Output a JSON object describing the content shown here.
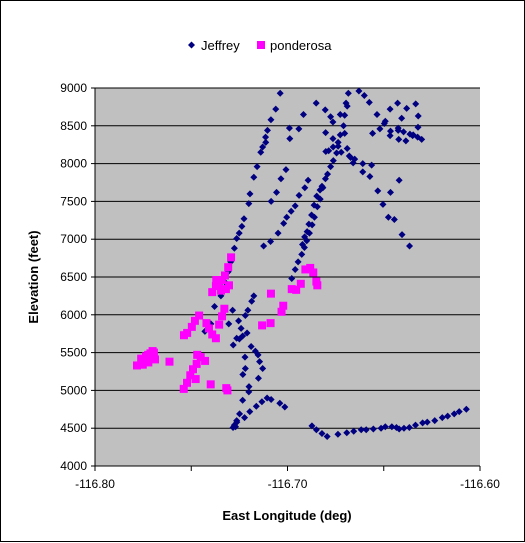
{
  "chart_data": {
    "type": "scatter",
    "title": "",
    "xlabel": "East Longitude (deg)",
    "ylabel": "Elevation (feet)",
    "xlim": [
      -116.8,
      -116.6
    ],
    "ylim": [
      4000,
      9000
    ],
    "x_ticks": [
      -116.8,
      -116.7,
      -116.6
    ],
    "x_tick_labels": [
      "-116.80",
      "-116.70",
      "-116.60"
    ],
    "y_ticks": [
      4000,
      4500,
      5000,
      5500,
      6000,
      6500,
      7000,
      7500,
      8000,
      8500,
      9000
    ],
    "y_tick_labels": [
      "4000",
      "4500",
      "5000",
      "5500",
      "6000",
      "6500",
      "7000",
      "7500",
      "8000",
      "8500",
      "9000"
    ],
    "grid": "horizontal",
    "legend_position": "top",
    "plot_background": "#c0c0c0",
    "series": [
      {
        "name": "Jeffrey",
        "marker": "diamond",
        "color": "#000080",
        "points": [
          [
            -116.7429,
            5780
          ],
          [
            -116.7398,
            5880
          ],
          [
            -116.7379,
            6110
          ],
          [
            -116.7346,
            6250
          ],
          [
            -116.7321,
            6420
          ],
          [
            -116.7308,
            6570
          ],
          [
            -116.7295,
            6700
          ],
          [
            -116.7276,
            6880
          ],
          [
            -116.7264,
            7010
          ],
          [
            -116.7251,
            7080
          ],
          [
            -116.7237,
            7170
          ],
          [
            -116.7226,
            7270
          ],
          [
            -116.7201,
            7470
          ],
          [
            -116.7195,
            7600
          ],
          [
            -116.7175,
            7820
          ],
          [
            -116.7158,
            7960
          ],
          [
            -116.7139,
            8150
          ],
          [
            -116.7129,
            8220
          ],
          [
            -116.7113,
            8280
          ],
          [
            -116.7114,
            8350
          ],
          [
            -116.7104,
            8440
          ],
          [
            -116.7086,
            8580
          ],
          [
            -116.7061,
            8720
          ],
          [
            -116.7038,
            8930
          ],
          [
            -116.7175,
            6250
          ],
          [
            -116.7186,
            6180
          ],
          [
            -116.7206,
            6060
          ],
          [
            -116.7219,
            5990
          ],
          [
            -116.7241,
            5820
          ],
          [
            -116.7264,
            5690
          ],
          [
            -116.7282,
            5600
          ],
          [
            -116.725,
            5680
          ],
          [
            -116.7221,
            5440
          ],
          [
            -116.7219,
            5290
          ],
          [
            -116.7232,
            5210
          ],
          [
            -116.72,
            5050
          ],
          [
            -116.7201,
            4980
          ],
          [
            -116.7233,
            4870
          ],
          [
            -116.7249,
            4690
          ],
          [
            -116.7264,
            4600
          ],
          [
            -116.7263,
            4580
          ],
          [
            -116.7276,
            4540
          ],
          [
            -116.7283,
            4510
          ],
          [
            -116.727,
            4520
          ],
          [
            -116.7223,
            4640
          ],
          [
            -116.7196,
            4720
          ],
          [
            -116.7162,
            4790
          ],
          [
            -116.7133,
            4850
          ],
          [
            -116.7106,
            4900
          ],
          [
            -116.7085,
            4880
          ],
          [
            -116.704,
            4830
          ],
          [
            -116.7014,
            4780
          ],
          [
            -116.6873,
            4530
          ],
          [
            -116.685,
            4480
          ],
          [
            -116.6821,
            4430
          ],
          [
            -116.6794,
            4390
          ],
          [
            -116.6738,
            4420
          ],
          [
            -116.6692,
            4440
          ],
          [
            -116.6656,
            4460
          ],
          [
            -116.6617,
            4480
          ],
          [
            -116.6591,
            4480
          ],
          [
            -116.6554,
            4490
          ],
          [
            -116.6514,
            4500
          ],
          [
            -116.6492,
            4520
          ],
          [
            -116.6458,
            4520
          ],
          [
            -116.6434,
            4510
          ],
          [
            -116.642,
            4490
          ],
          [
            -116.6395,
            4500
          ],
          [
            -116.6367,
            4510
          ],
          [
            -116.6335,
            4540
          ],
          [
            -116.6298,
            4570
          ],
          [
            -116.6274,
            4580
          ],
          [
            -116.6235,
            4600
          ],
          [
            -116.6196,
            4640
          ],
          [
            -116.6168,
            4660
          ],
          [
            -116.6134,
            4690
          ],
          [
            -116.6108,
            4720
          ],
          [
            -116.6071,
            4750
          ],
          [
            -116.6978,
            6480
          ],
          [
            -116.696,
            6600
          ],
          [
            -116.6945,
            6700
          ],
          [
            -116.6926,
            6800
          ],
          [
            -116.6912,
            6890
          ],
          [
            -116.69,
            6980
          ],
          [
            -116.6886,
            7080
          ],
          [
            -116.6872,
            7190
          ],
          [
            -116.686,
            7290
          ],
          [
            -116.6845,
            7430
          ],
          [
            -116.683,
            7530
          ],
          [
            -116.6816,
            7680
          ],
          [
            -116.6803,
            7800
          ],
          [
            -116.6792,
            7860
          ],
          [
            -116.6776,
            7960
          ],
          [
            -116.6762,
            8040
          ],
          [
            -116.6745,
            8140
          ],
          [
            -116.6737,
            8280
          ],
          [
            -116.6726,
            8380
          ],
          [
            -116.6709,
            8500
          ],
          [
            -116.6703,
            8640
          ],
          [
            -116.6696,
            8800
          ],
          [
            -116.6684,
            8930
          ],
          [
            -116.6922,
            6930
          ],
          [
            -116.6911,
            7030
          ],
          [
            -116.6898,
            7100
          ],
          [
            -116.6889,
            7200
          ],
          [
            -116.6875,
            7320
          ],
          [
            -116.6862,
            7450
          ],
          [
            -116.6848,
            7570
          ],
          [
            -116.6831,
            7650
          ],
          [
            -116.6821,
            7700
          ],
          [
            -116.6801,
            8160
          ],
          [
            -116.6786,
            8170
          ],
          [
            -116.6763,
            8220
          ],
          [
            -116.6737,
            8230
          ],
          [
            -116.6721,
            8150
          ],
          [
            -116.6679,
            8100
          ],
          [
            -116.6651,
            8060
          ],
          [
            -116.6609,
            7890
          ],
          [
            -116.6572,
            7830
          ],
          [
            -116.6531,
            7640
          ],
          [
            -116.6504,
            7460
          ],
          [
            -116.6476,
            7290
          ],
          [
            -116.6445,
            7260
          ],
          [
            -116.6405,
            7060
          ],
          [
            -116.6366,
            6910
          ],
          [
            -116.6558,
            8400
          ],
          [
            -116.652,
            8460
          ],
          [
            -116.6492,
            8560
          ],
          [
            -116.6467,
            8720
          ],
          [
            -116.6428,
            8800
          ],
          [
            -116.6467,
            8370
          ],
          [
            -116.6422,
            8320
          ],
          [
            -116.6385,
            8300
          ],
          [
            -116.635,
            8370
          ],
          [
            -116.6629,
            8960
          ],
          [
            -116.6601,
            8900
          ],
          [
            -116.6575,
            8810
          ],
          [
            -116.6535,
            8650
          ],
          [
            -116.6497,
            8530
          ],
          [
            -116.6465,
            8430
          ],
          [
            -116.6425,
            8440
          ],
          [
            -116.6397,
            8420
          ],
          [
            -116.6364,
            8390
          ],
          [
            -116.6347,
            8380
          ],
          [
            -116.6324,
            8350
          ],
          [
            -116.6303,
            8320
          ],
          [
            -116.6322,
            8480
          ],
          [
            -116.6321,
            8630
          ],
          [
            -116.6334,
            8790
          ],
          [
            -116.6381,
            8730
          ],
          [
            -116.6407,
            8600
          ],
          [
            -116.6425,
            8470
          ],
          [
            -116.642,
            7780
          ],
          [
            -116.6465,
            7620
          ],
          [
            -116.6563,
            7980
          ],
          [
            -116.6609,
            8000
          ],
          [
            -116.6659,
            8010
          ],
          [
            -116.6764,
            8330
          ],
          [
            -116.6776,
            8620
          ],
          [
            -116.6804,
            8710
          ],
          [
            -116.6851,
            8800
          ],
          [
            -116.6917,
            8650
          ],
          [
            -116.6941,
            8460
          ],
          [
            -116.6988,
            8330
          ],
          [
            -116.699,
            8470
          ],
          [
            -116.6802,
            8410
          ],
          [
            -116.6764,
            8550
          ],
          [
            -116.6726,
            8650
          ],
          [
            -116.6703,
            8400
          ],
          [
            -116.669,
            8200
          ],
          [
            -116.6672,
            8080
          ],
          [
            -116.669,
            8760
          ],
          [
            -116.7124,
            6910
          ],
          [
            -116.7088,
            6970
          ],
          [
            -116.7049,
            7080
          ],
          [
            -116.702,
            7210
          ],
          [
            -116.7004,
            7290
          ],
          [
            -116.6981,
            7370
          ],
          [
            -116.696,
            7440
          ],
          [
            -116.694,
            7580
          ],
          [
            -116.691,
            7680
          ],
          [
            -116.6893,
            7780
          ],
          [
            -116.7085,
            7500
          ],
          [
            -116.7057,
            7620
          ],
          [
            -116.7034,
            7800
          ],
          [
            -116.7008,
            7920
          ],
          [
            -116.7305,
            5880
          ],
          [
            -116.7285,
            6060
          ],
          [
            -116.7254,
            5920
          ],
          [
            -116.7233,
            5720
          ],
          [
            -116.721,
            5760
          ],
          [
            -116.7189,
            5580
          ],
          [
            -116.7167,
            5520
          ],
          [
            -116.7153,
            5470
          ],
          [
            -116.7145,
            5380
          ],
          [
            -116.7129,
            5290
          ],
          [
            -116.7151,
            5160
          ]
        ]
      },
      {
        "name": "ponderosa",
        "marker": "square",
        "color": "#ff00ff",
        "points": [
          [
            -116.7782,
            5330
          ],
          [
            -116.776,
            5420
          ],
          [
            -116.7748,
            5380
          ],
          [
            -116.7735,
            5450
          ],
          [
            -116.7723,
            5370
          ],
          [
            -116.7712,
            5490
          ],
          [
            -116.7701,
            5520
          ],
          [
            -116.7688,
            5410
          ],
          [
            -116.7752,
            5340
          ],
          [
            -116.7737,
            5410
          ],
          [
            -116.7724,
            5470
          ],
          [
            -116.7694,
            5500
          ],
          [
            -116.7613,
            5380
          ],
          [
            -116.7538,
            5730
          ],
          [
            -116.7521,
            5760
          ],
          [
            -116.7497,
            5840
          ],
          [
            -116.7481,
            5920
          ],
          [
            -116.7459,
            5990
          ],
          [
            -116.7421,
            5890
          ],
          [
            -116.7408,
            5820
          ],
          [
            -116.7391,
            5740
          ],
          [
            -116.7372,
            5690
          ],
          [
            -116.7355,
            5870
          ],
          [
            -116.734,
            5980
          ],
          [
            -116.7328,
            6080
          ],
          [
            -116.7391,
            6300
          ],
          [
            -116.7372,
            6380
          ],
          [
            -116.7356,
            6410
          ],
          [
            -116.7341,
            6460
          ],
          [
            -116.7325,
            6520
          ],
          [
            -116.7308,
            6630
          ],
          [
            -116.7293,
            6760
          ],
          [
            -116.737,
            6460
          ],
          [
            -116.7345,
            6320
          ],
          [
            -116.732,
            6340
          ],
          [
            -116.7304,
            6390
          ],
          [
            -116.7469,
            5470
          ],
          [
            -116.7451,
            5440
          ],
          [
            -116.7428,
            5390
          ],
          [
            -116.7472,
            5350
          ],
          [
            -116.7491,
            5280
          ],
          [
            -116.7505,
            5200
          ],
          [
            -116.7522,
            5100
          ],
          [
            -116.7539,
            5020
          ],
          [
            -116.7477,
            5150
          ],
          [
            -116.7399,
            5080
          ],
          [
            -116.7318,
            5030
          ],
          [
            -116.7312,
            5000
          ],
          [
            -116.7086,
            6280
          ],
          [
            -116.7031,
            6040
          ],
          [
            -116.7022,
            6120
          ],
          [
            -116.6978,
            6340
          ],
          [
            -116.6955,
            6330
          ],
          [
            -116.6931,
            6410
          ],
          [
            -116.6907,
            6600
          ],
          [
            -116.6882,
            6620
          ],
          [
            -116.6866,
            6560
          ],
          [
            -116.685,
            6440
          ],
          [
            -116.6845,
            6390
          ],
          [
            -116.7088,
            5890
          ],
          [
            -116.7132,
            5860
          ]
        ]
      }
    ]
  }
}
